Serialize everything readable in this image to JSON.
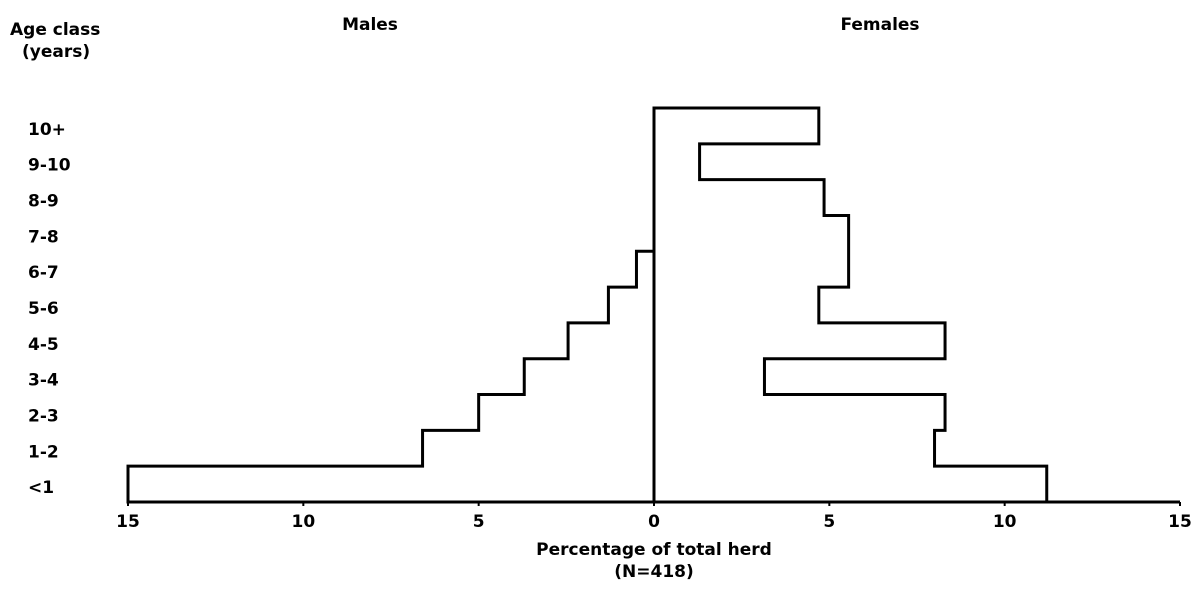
{
  "chart_data": {
    "type": "pyramid",
    "y_axis_label": [
      "Age class",
      "(years)"
    ],
    "x_axis_label": [
      "Percentage of total herd",
      "(N=418)"
    ],
    "categories": [
      "10+",
      "9-10",
      "8-9",
      "7-8",
      "6-7",
      "5-6",
      "4-5",
      "3-4",
      "2-3",
      "1-2",
      "<1"
    ],
    "series": [
      {
        "name": "Males",
        "side": "left",
        "color": "#000000",
        "values": [
          0,
          0,
          0,
          0,
          0.5,
          1.3,
          2.45,
          3.7,
          5.0,
          6.6,
          15.0
        ]
      },
      {
        "name": "Females",
        "side": "right",
        "color": "#000000",
        "values": [
          4.7,
          1.3,
          4.85,
          5.55,
          5.55,
          4.7,
          8.3,
          3.15,
          8.3,
          8.0,
          11.2
        ]
      }
    ],
    "xlim": [
      -15,
      15
    ],
    "xticks": [
      {
        "value": -15,
        "label": "15"
      },
      {
        "value": -10,
        "label": "10"
      },
      {
        "value": -5,
        "label": "5"
      },
      0,
      5,
      10,
      15
    ]
  }
}
